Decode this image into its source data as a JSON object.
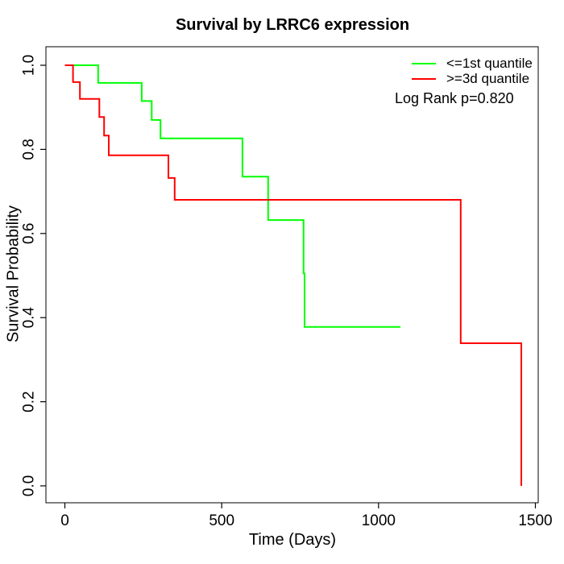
{
  "chart_data": {
    "type": "line",
    "subtype": "kaplan_meier_step",
    "title": "Survival by LRRC6 expression",
    "xlabel": "Time (Days)",
    "ylabel": "Survival Probability",
    "xlim": [
      0,
      1500
    ],
    "ylim": [
      0.0,
      1.0
    ],
    "xticks": [
      "0",
      "500",
      "1000",
      "1500"
    ],
    "yticks": [
      "0.0",
      "0.2",
      "0.4",
      "0.6",
      "0.8",
      "1.0"
    ],
    "grid": false,
    "legend_position": "top-right",
    "annotation": "Log Rank p=0.820",
    "series": [
      {
        "name": "<=1st quantile",
        "color": "#00ff00",
        "steps": [
          [
            0,
            1.0
          ],
          [
            106,
            0.958
          ],
          [
            245,
            0.915
          ],
          [
            277,
            0.87
          ],
          [
            305,
            0.826
          ],
          [
            566,
            0.735
          ],
          [
            648,
            0.632
          ],
          [
            761,
            0.505
          ],
          [
            764,
            0.378
          ],
          [
            1070,
            0.378
          ]
        ]
      },
      {
        "name": ">=3d quantile",
        "color": "#ff0000",
        "steps": [
          [
            0,
            1.0
          ],
          [
            26,
            0.96
          ],
          [
            48,
            0.92
          ],
          [
            110,
            0.877
          ],
          [
            125,
            0.833
          ],
          [
            140,
            0.786
          ],
          [
            330,
            0.732
          ],
          [
            350,
            0.68
          ],
          [
            1262,
            0.339
          ],
          [
            1455,
            0.0
          ]
        ]
      }
    ]
  }
}
